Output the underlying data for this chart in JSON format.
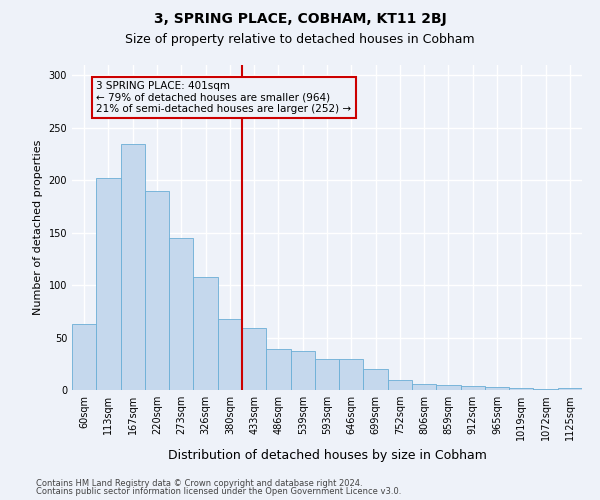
{
  "title": "3, SPRING PLACE, COBHAM, KT11 2BJ",
  "subtitle": "Size of property relative to detached houses in Cobham",
  "xlabel": "Distribution of detached houses by size in Cobham",
  "ylabel": "Number of detached properties",
  "categories": [
    "60sqm",
    "113sqm",
    "167sqm",
    "220sqm",
    "273sqm",
    "326sqm",
    "380sqm",
    "433sqm",
    "486sqm",
    "539sqm",
    "593sqm",
    "646sqm",
    "699sqm",
    "752sqm",
    "806sqm",
    "859sqm",
    "912sqm",
    "965sqm",
    "1019sqm",
    "1072sqm",
    "1125sqm"
  ],
  "values": [
    63,
    202,
    235,
    190,
    145,
    108,
    68,
    59,
    39,
    37,
    30,
    30,
    20,
    10,
    6,
    5,
    4,
    3,
    2,
    1,
    2
  ],
  "bar_color": "#c5d8ed",
  "bar_edge_color": "#6aaed6",
  "vline_pos": 6.5,
  "vline_color": "#cc0000",
  "ylim": [
    0,
    310
  ],
  "yticks": [
    0,
    50,
    100,
    150,
    200,
    250,
    300
  ],
  "annotation_text": "3 SPRING PLACE: 401sqm\n← 79% of detached houses are smaller (964)\n21% of semi-detached houses are larger (252) →",
  "annotation_box_color": "#cc0000",
  "footer_line1": "Contains HM Land Registry data © Crown copyright and database right 2024.",
  "footer_line2": "Contains public sector information licensed under the Open Government Licence v3.0.",
  "background_color": "#eef2f9",
  "grid_color": "#ffffff",
  "title_fontsize": 10,
  "subtitle_fontsize": 9,
  "xlabel_fontsize": 9,
  "ylabel_fontsize": 8,
  "tick_fontsize": 7,
  "footer_fontsize": 6,
  "annotation_fontsize": 7.5
}
